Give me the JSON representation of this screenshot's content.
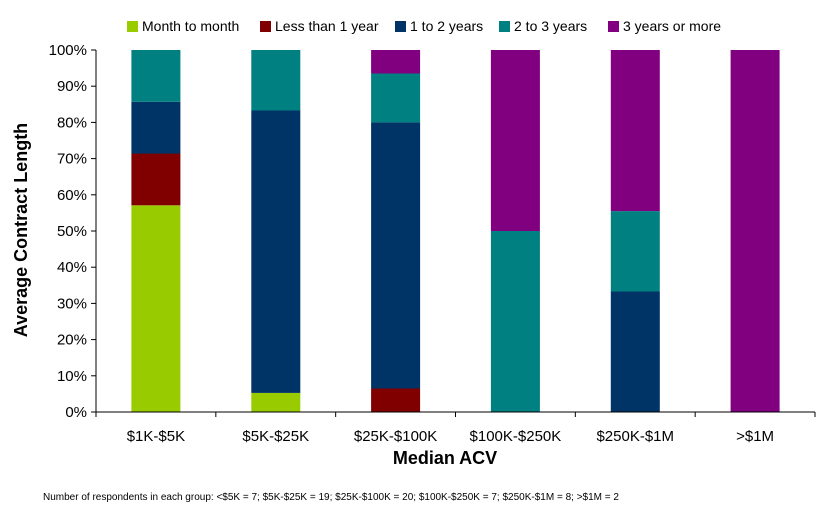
{
  "chart_data": {
    "type": "bar",
    "stacked": true,
    "categories": [
      "$1K-$5K",
      "$5K-$25K",
      "$25K-$100K",
      "$100K-$250K",
      "$250K-$1M",
      ">$1M"
    ],
    "series": [
      {
        "name": "Month to month",
        "color": "#99cc00",
        "values": [
          57.1,
          5.3,
          0,
          0,
          0,
          0
        ]
      },
      {
        "name": "Less than 1 year",
        "color": "#800000",
        "values": [
          14.3,
          0,
          6.5,
          0,
          0,
          0
        ]
      },
      {
        "name": "1 to 2 years",
        "color": "#003366",
        "values": [
          14.3,
          78.0,
          73.5,
          0,
          33.3,
          0
        ]
      },
      {
        "name": "2 to 3 years",
        "color": "#008080",
        "values": [
          14.3,
          16.7,
          13.5,
          50.0,
          22.2,
          0
        ]
      },
      {
        "name": "3 years or more",
        "color": "#800080",
        "values": [
          0,
          0,
          6.5,
          50.0,
          44.5,
          100
        ]
      }
    ],
    "ylim": [
      0,
      100
    ],
    "yticks": [
      "0%",
      "10%",
      "20%",
      "30%",
      "40%",
      "50%",
      "60%",
      "70%",
      "80%",
      "90%",
      "100%"
    ],
    "xlabel": "Median ACV",
    "ylabel": "Average Contract Length",
    "legend_position": "top",
    "grid": false
  },
  "footnote": "Number of respondents in each group: <$5K = 7; $5K-$25K = 19; $25K-$100K = 20; $100K-$250K = 7; $250K-$1M = 8; >$1M = 2"
}
